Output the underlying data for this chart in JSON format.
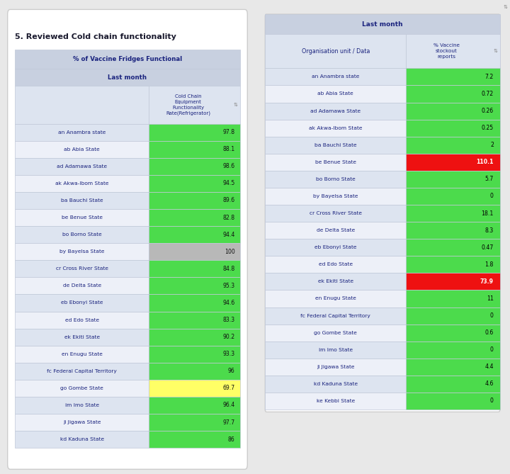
{
  "title_left": "5. Reviewed Cold chain functionality",
  "table1_header1": "% of Vaccine Fridges Functional",
  "table1_header2": "Last month",
  "table1_col_header": "Cold Chain\nEquipment\nFunctionality\nRate(Refrigerator)",
  "table1_states": [
    "an Anambra state",
    "ab Abia State",
    "ad Adamawa State",
    "ak Akwa-Ibom State",
    "ba Bauchi State",
    "be Benue State",
    "bo Borno State",
    "by Bayelsa State",
    "cr Cross River State",
    "de Delta State",
    "eb Ebonyi State",
    "ed Edo State",
    "ek Ekiti State",
    "en Enugu State",
    "fc Federal Capital Territory",
    "go Gombe State",
    "im Imo State",
    "ji Jigawa State",
    "kd Kaduna State"
  ],
  "table1_values": [
    "97.8",
    "88.1",
    "98.6",
    "94.5",
    "89.6",
    "82.8",
    "94.4",
    "100",
    "84.8",
    "95.3",
    "94.6",
    "83.3",
    "90.2",
    "93.3",
    "96",
    "69.7",
    "96.4",
    "97.7",
    "86"
  ],
  "table1_colors": [
    "#4cdb4c",
    "#4cdb4c",
    "#4cdb4c",
    "#4cdb4c",
    "#4cdb4c",
    "#4cdb4c",
    "#4cdb4c",
    "#b8b8b8",
    "#4cdb4c",
    "#4cdb4c",
    "#4cdb4c",
    "#4cdb4c",
    "#4cdb4c",
    "#4cdb4c",
    "#4cdb4c",
    "#ffff66",
    "#4cdb4c",
    "#4cdb4c",
    "#4cdb4c"
  ],
  "table2_header": "Last month",
  "table2_col1": "Organisation unit / Data",
  "table2_col2": "% Vaccine\nstockout\nreports",
  "table2_states": [
    "an Anambra state",
    "ab Abia State",
    "ad Adamawa State",
    "ak Akwa-Ibom State",
    "ba Bauchi State",
    "be Benue State",
    "bo Borno State",
    "by Bayelsa State",
    "cr Cross River State",
    "de Delta State",
    "eb Ebonyi State",
    "ed Edo State",
    "ek Ekiti State",
    "en Enugu State",
    "fc Federal Capital Territory",
    "go Gombe State",
    "im Imo State",
    "ji Jigawa State",
    "kd Kaduna State",
    "ke Kebbi State"
  ],
  "table2_values": [
    "7.2",
    "0.72",
    "0.26",
    "0.25",
    "2",
    "110.1",
    "5.7",
    "0",
    "18.1",
    "8.3",
    "0.47",
    "1.8",
    "73.9",
    "11",
    "0",
    "0.6",
    "0",
    "4.4",
    "4.6",
    "0"
  ],
  "table2_colors": [
    "#4cdb4c",
    "#4cdb4c",
    "#4cdb4c",
    "#4cdb4c",
    "#4cdb4c",
    "#ee1111",
    "#4cdb4c",
    "#4cdb4c",
    "#4cdb4c",
    "#4cdb4c",
    "#4cdb4c",
    "#4cdb4c",
    "#ee1111",
    "#4cdb4c",
    "#4cdb4c",
    "#4cdb4c",
    "#4cdb4c",
    "#4cdb4c",
    "#4cdb4c",
    "#4cdb4c"
  ],
  "table2_value_text_colors": [
    "#000000",
    "#000000",
    "#000000",
    "#000000",
    "#000000",
    "#ffffff",
    "#000000",
    "#000000",
    "#000000",
    "#000000",
    "#000000",
    "#000000",
    "#ffffff",
    "#000000",
    "#000000",
    "#000000",
    "#000000",
    "#000000",
    "#000000",
    "#000000"
  ],
  "outer_bg": "#e8e8e8",
  "card_bg": "#ffffff",
  "header_bg": "#c8d0e0",
  "row_bg_even": "#dde4f0",
  "row_bg_odd": "#edf0f8",
  "border_color": "#c0c8d8",
  "title_color": "#1a1a2e",
  "text_color": "#1a237e",
  "sort_color": "#888888"
}
